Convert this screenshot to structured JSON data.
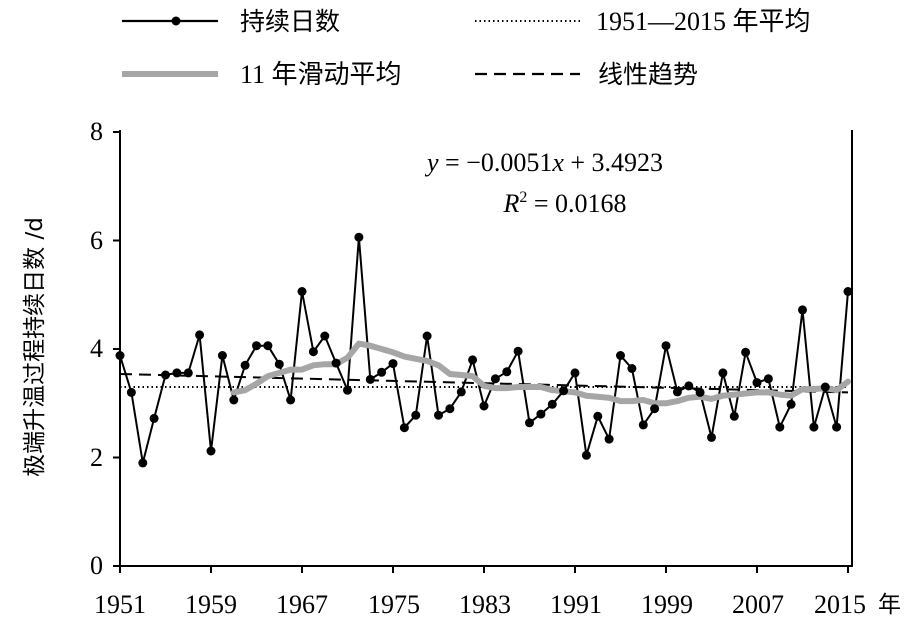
{
  "chart_data": {
    "type": "line",
    "title": "",
    "xlabel": "年",
    "ylabel": "极端升温过程持续日数 /d",
    "xlim": [
      1951,
      2015
    ],
    "ylim": [
      0,
      8
    ],
    "xticks": [
      1951,
      1959,
      1967,
      1975,
      1983,
      1991,
      1999,
      2007,
      2015
    ],
    "yticks": [
      0,
      2,
      4,
      6,
      8
    ],
    "legend_position": "top",
    "legend": [
      {
        "key": "duration",
        "label": "持续日数",
        "style": "solid-marker",
        "color": "#000000"
      },
      {
        "key": "mean",
        "label": "1951—2015 年平均",
        "style": "dotted",
        "color": "#000000"
      },
      {
        "key": "moving",
        "label": "11 年滑动平均",
        "style": "thick-solid",
        "color": "#a6a6a6"
      },
      {
        "key": "trend",
        "label": "线性趋势",
        "style": "dashed",
        "color": "#000000"
      }
    ],
    "annotations": {
      "equation": "y = −0.0051x + 3.4923",
      "r_squared": "R² = 0.0168",
      "eq_y": "y",
      "eq_rest": " = −0.0051",
      "eq_x": "x",
      "eq_tail": " + 3.4923",
      "r_letter": "R",
      "r_sup": "2",
      "r_tail": " = 0.0168"
    },
    "series": [
      {
        "name": "持续日数",
        "x": [
          1951,
          1952,
          1953,
          1954,
          1955,
          1956,
          1957,
          1958,
          1959,
          1960,
          1961,
          1962,
          1963,
          1964,
          1965,
          1966,
          1967,
          1968,
          1969,
          1970,
          1971,
          1972,
          1973,
          1974,
          1975,
          1976,
          1977,
          1978,
          1979,
          1980,
          1981,
          1982,
          1983,
          1984,
          1985,
          1986,
          1987,
          1988,
          1989,
          1990,
          1991,
          1992,
          1993,
          1994,
          1995,
          1996,
          1997,
          1998,
          1999,
          2000,
          2001,
          2002,
          2003,
          2004,
          2005,
          2006,
          2007,
          2008,
          2009,
          2010,
          2011,
          2012,
          2013,
          2014,
          2015
        ],
        "values": [
          3.88,
          3.2,
          1.9,
          2.72,
          3.52,
          3.56,
          3.56,
          4.26,
          2.12,
          3.88,
          3.06,
          3.7,
          4.06,
          4.06,
          3.72,
          3.06,
          5.06,
          3.95,
          4.24,
          3.74,
          3.24,
          6.06,
          3.44,
          3.57,
          3.73,
          2.55,
          2.78,
          4.24,
          2.78,
          2.9,
          3.21,
          3.8,
          2.95,
          3.45,
          3.58,
          3.96,
          2.64,
          2.8,
          2.98,
          3.23,
          3.56,
          2.04,
          2.76,
          2.34,
          3.88,
          3.64,
          2.6,
          2.9,
          4.06,
          3.21,
          3.32,
          3.2,
          2.37,
          3.56,
          2.76,
          3.94,
          3.38,
          3.45,
          2.56,
          2.98,
          4.72,
          2.56,
          3.3,
          2.56,
          5.06
        ]
      },
      {
        "name": "11 年滑动平均",
        "x": [
          1961,
          1962,
          1963,
          1964,
          1965,
          1966,
          1967,
          1968,
          1969,
          1970,
          1971,
          1972,
          1973,
          1974,
          1975,
          1976,
          1977,
          1978,
          1979,
          1980,
          1981,
          1982,
          1983,
          1984,
          1985,
          1986,
          1987,
          1988,
          1989,
          1990,
          1991,
          1992,
          1993,
          1994,
          1995,
          1996,
          1997,
          1998,
          1999,
          2000,
          2001,
          2002,
          2003,
          2004,
          2005,
          2006,
          2007,
          2008,
          2009,
          2010,
          2011,
          2012,
          2013,
          2014,
          2015
        ],
        "values": [
          3.2,
          3.24,
          3.36,
          3.5,
          3.56,
          3.62,
          3.62,
          3.7,
          3.72,
          3.72,
          3.84,
          4.1,
          4.06,
          4.0,
          3.94,
          3.86,
          3.82,
          3.78,
          3.7,
          3.54,
          3.52,
          3.5,
          3.32,
          3.28,
          3.28,
          3.3,
          3.3,
          3.3,
          3.24,
          3.22,
          3.2,
          3.14,
          3.12,
          3.1,
          3.04,
          3.04,
          3.06,
          3.0,
          3.0,
          3.04,
          3.1,
          3.12,
          3.08,
          3.14,
          3.16,
          3.18,
          3.2,
          3.2,
          3.16,
          3.14,
          3.26,
          3.26,
          3.28,
          3.24,
          3.4
        ]
      },
      {
        "name": "1951—2015 年平均",
        "x": [
          1951,
          2015
        ],
        "values": [
          3.3,
          3.3
        ]
      },
      {
        "name": "线性趋势",
        "x": [
          1951,
          2015
        ],
        "values": [
          3.54,
          3.2
        ]
      }
    ]
  }
}
